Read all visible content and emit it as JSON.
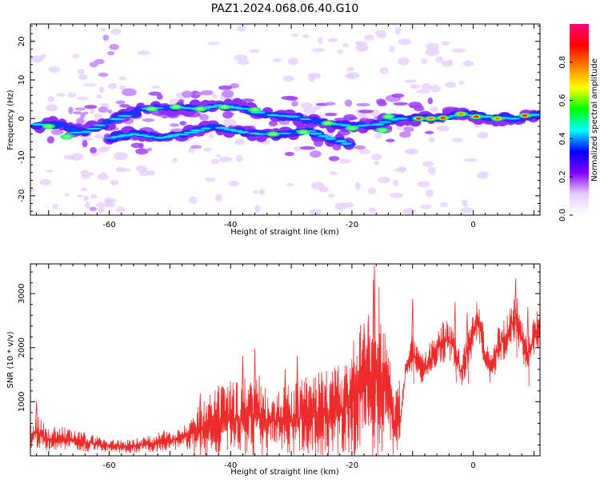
{
  "page_title": "PAZ1.2024.068.06.40.G10",
  "chart_data": [
    {
      "type": "heatmap",
      "xlabel": "Height of straight line (km)",
      "ylabel": "Frequency (Hz)",
      "xlim": [
        -73,
        11
      ],
      "ylim": [
        -25,
        24.5
      ],
      "x_ticks": [
        -60,
        -40,
        -20,
        0
      ],
      "y_ticks": [
        -20,
        -10,
        0,
        10,
        20
      ],
      "colorbar": {
        "label": "Normalized spectral amplitude",
        "range": [
          0,
          1
        ],
        "ticks": [
          "0.0",
          "0.2",
          "0.4",
          "0.6",
          "0.8"
        ],
        "colormap": [
          "#ffffff",
          "#e6ccff",
          "#8000ff",
          "#0000ff",
          "#00ffff",
          "#00ff00",
          "#ffff00",
          "#ff8000",
          "#ff0000",
          "#ff0080"
        ]
      },
      "ridges": [
        {
          "name": "main",
          "points": [
            [
              -72,
              -1.5
            ],
            [
              -68,
              -1.8
            ],
            [
              -65,
              -4
            ],
            [
              -62,
              -2
            ],
            [
              -58,
              0.5
            ],
            [
              -55,
              2.5
            ],
            [
              -50,
              3
            ],
            [
              -45,
              2.5
            ],
            [
              -42,
              3.5
            ],
            [
              -38,
              2.5
            ],
            [
              -34,
              1
            ],
            [
              -30,
              0.5
            ],
            [
              -25,
              -1
            ],
            [
              -20,
              -2
            ],
            [
              -16,
              -1.5
            ],
            [
              -13,
              0
            ],
            [
              -10,
              0
            ],
            [
              -6,
              0
            ],
            [
              -2,
              1
            ],
            [
              2,
              0.5
            ],
            [
              6,
              0
            ],
            [
              10,
              1
            ]
          ]
        },
        {
          "name": "lower",
          "points": [
            [
              -60,
              -5
            ],
            [
              -56,
              -4
            ],
            [
              -52,
              -5
            ],
            [
              -48,
              -4
            ],
            [
              -43,
              -2
            ],
            [
              -40,
              -3
            ],
            [
              -36,
              -4
            ],
            [
              -32,
              -4
            ],
            [
              -28,
              -3
            ],
            [
              -24,
              -5
            ],
            [
              -21,
              -6.5
            ]
          ]
        }
      ],
      "hot_spots": [
        [
          -67,
          -4.7
        ],
        [
          -70,
          -2
        ],
        [
          -53,
          2.5
        ],
        [
          -49,
          3
        ],
        [
          -45,
          2.5
        ],
        [
          -41,
          3
        ],
        [
          -36,
          2.3
        ],
        [
          -33,
          -4
        ],
        [
          -28,
          -3.5
        ],
        [
          -24,
          -1.2
        ],
        [
          -20,
          -2.5
        ],
        [
          -15,
          -3
        ],
        [
          -14,
          0.5
        ],
        [
          -9,
          0
        ],
        [
          -7,
          0
        ],
        [
          -5,
          0.2
        ],
        [
          -2,
          1.2
        ],
        [
          0.5,
          0.5
        ],
        [
          4,
          0
        ],
        [
          8.5,
          0.8
        ]
      ]
    },
    {
      "type": "line",
      "xlabel": "Height of straight line (km)",
      "ylabel": "SNR (10 * v/v)",
      "xlim": [
        -73,
        11
      ],
      "ylim": [
        0,
        3550
      ],
      "x_ticks": [
        -60,
        -40,
        -20,
        0
      ],
      "y_ticks": [
        1000,
        2000,
        3000
      ],
      "color": "#ee2b2b",
      "envelope": [
        [
          -73,
          350
        ],
        [
          -72,
          450
        ],
        [
          -70,
          300
        ],
        [
          -68,
          330
        ],
        [
          -66,
          280
        ],
        [
          -64,
          250
        ],
        [
          -62,
          220
        ],
        [
          -60,
          180
        ],
        [
          -58,
          170
        ],
        [
          -56,
          190
        ],
        [
          -54,
          210
        ],
        [
          -52,
          250
        ],
        [
          -50,
          300
        ],
        [
          -48,
          330
        ],
        [
          -46,
          420
        ],
        [
          -44,
          520
        ],
        [
          -42,
          620
        ],
        [
          -40,
          680
        ],
        [
          -38,
          720
        ],
        [
          -36,
          760
        ],
        [
          -34,
          660
        ],
        [
          -32,
          620
        ],
        [
          -30,
          650
        ],
        [
          -28,
          720
        ],
        [
          -26,
          760
        ],
        [
          -24,
          800
        ],
        [
          -22,
          820
        ],
        [
          -20,
          1000
        ],
        [
          -18,
          1300
        ],
        [
          -17,
          1500
        ],
        [
          -16,
          1700
        ],
        [
          -15,
          1450
        ],
        [
          -14,
          1000
        ],
        [
          -13,
          600
        ],
        [
          -12,
          700
        ],
        [
          -11,
          1700
        ],
        [
          -10,
          1900
        ],
        [
          -9,
          1650
        ],
        [
          -8,
          1600
        ],
        [
          -7,
          1800
        ],
        [
          -6,
          2000
        ],
        [
          -5,
          2100
        ],
        [
          -4,
          2150
        ],
        [
          -3,
          1950
        ],
        [
          -2,
          1550
        ],
        [
          -1,
          1900
        ],
        [
          0,
          2300
        ],
        [
          1,
          2500
        ],
        [
          2,
          1800
        ],
        [
          3,
          1600
        ],
        [
          4,
          2000
        ],
        [
          5,
          2150
        ],
        [
          6,
          2350
        ],
        [
          7,
          2600
        ],
        [
          8,
          2150
        ],
        [
          9,
          1850
        ],
        [
          10,
          2250
        ],
        [
          11,
          2300
        ]
      ],
      "spikes": [
        [
          -72,
          1000
        ],
        [
          -45,
          1150
        ],
        [
          -42,
          1300
        ],
        [
          -38,
          1850
        ],
        [
          -36,
          1980
        ],
        [
          -31,
          1600
        ],
        [
          -29,
          1850
        ],
        [
          -25,
          1550
        ],
        [
          -20,
          1600
        ],
        [
          -18,
          2450
        ],
        [
          -17.3,
          2600
        ],
        [
          -16.3,
          3520
        ],
        [
          -10,
          2900
        ],
        [
          -3,
          2850
        ],
        [
          -1,
          2650
        ],
        [
          7,
          3280
        ],
        [
          9,
          2750
        ]
      ]
    }
  ]
}
